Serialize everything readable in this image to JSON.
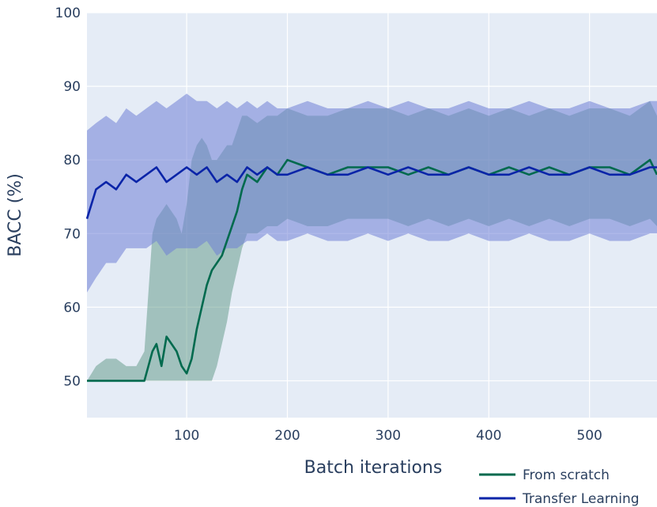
{
  "chart_data": {
    "type": "line",
    "xlabel": "Batch iterations",
    "ylabel": "BACC (%)",
    "xlim": [
      1,
      567
    ],
    "ylim": [
      45,
      100
    ],
    "xticks": [
      100,
      200,
      300,
      400,
      500
    ],
    "yticks": [
      50,
      60,
      70,
      80,
      90,
      100
    ],
    "grid": true,
    "legend_position": "bottom-right",
    "series": [
      {
        "name": "From scratch",
        "color": "#006a4e",
        "band_color": "#6a9e8e",
        "x": [
          1,
          10,
          20,
          30,
          40,
          50,
          58,
          62,
          66,
          70,
          75,
          80,
          85,
          90,
          95,
          100,
          105,
          110,
          115,
          120,
          125,
          130,
          135,
          140,
          145,
          150,
          155,
          160,
          170,
          180,
          190,
          200,
          220,
          240,
          260,
          280,
          300,
          320,
          340,
          360,
          380,
          400,
          420,
          440,
          460,
          480,
          500,
          520,
          540,
          560,
          567
        ],
        "mean": [
          50,
          50,
          50,
          50,
          50,
          50,
          50,
          52,
          54,
          55,
          52,
          56,
          55,
          54,
          52,
          51,
          53,
          57,
          60,
          63,
          65,
          66,
          67,
          69,
          71,
          73,
          76,
          78,
          77,
          79,
          78,
          80,
          79,
          78,
          79,
          79,
          79,
          78,
          79,
          78,
          79,
          78,
          79,
          78,
          79,
          78,
          79,
          79,
          78,
          80,
          78
        ],
        "upper": [
          50,
          52,
          53,
          53,
          52,
          52,
          54,
          62,
          70,
          72,
          73,
          74,
          73,
          72,
          70,
          74,
          80,
          82,
          83,
          82,
          80,
          80,
          81,
          82,
          82,
          84,
          86,
          86,
          85,
          86,
          86,
          87,
          86,
          86,
          87,
          87,
          87,
          86,
          87,
          86,
          87,
          86,
          87,
          86,
          87,
          86,
          87,
          87,
          86,
          88,
          86
        ],
        "lower": [
          50,
          50,
          50,
          50,
          50,
          50,
          50,
          50,
          50,
          50,
          50,
          50,
          50,
          50,
          50,
          50,
          50,
          50,
          50,
          50,
          50,
          52,
          55,
          58,
          62,
          65,
          68,
          70,
          70,
          71,
          71,
          72,
          71,
          71,
          72,
          72,
          72,
          71,
          72,
          71,
          72,
          71,
          72,
          71,
          72,
          71,
          72,
          72,
          71,
          72,
          71
        ]
      },
      {
        "name": "Transfer Learning",
        "color": "#0a24a8",
        "band_color": "#6f80d6",
        "x": [
          1,
          10,
          20,
          30,
          40,
          50,
          60,
          70,
          80,
          90,
          100,
          110,
          120,
          130,
          140,
          150,
          160,
          170,
          180,
          190,
          200,
          220,
          240,
          260,
          280,
          300,
          320,
          340,
          360,
          380,
          400,
          420,
          440,
          460,
          480,
          500,
          520,
          540,
          560,
          567
        ],
        "mean": [
          72,
          76,
          77,
          76,
          78,
          77,
          78,
          79,
          77,
          78,
          79,
          78,
          79,
          77,
          78,
          77,
          79,
          78,
          79,
          78,
          78,
          79,
          78,
          78,
          79,
          78,
          79,
          78,
          78,
          79,
          78,
          78,
          79,
          78,
          78,
          79,
          78,
          78,
          79,
          79
        ],
        "upper": [
          84,
          85,
          86,
          85,
          87,
          86,
          87,
          88,
          87,
          88,
          89,
          88,
          88,
          87,
          88,
          87,
          88,
          87,
          88,
          87,
          87,
          88,
          87,
          87,
          88,
          87,
          88,
          87,
          87,
          88,
          87,
          87,
          88,
          87,
          87,
          88,
          87,
          87,
          88,
          88
        ],
        "lower": [
          62,
          64,
          66,
          66,
          68,
          68,
          68,
          69,
          67,
          68,
          68,
          68,
          69,
          67,
          68,
          68,
          69,
          69,
          70,
          69,
          69,
          70,
          69,
          69,
          70,
          69,
          70,
          69,
          69,
          70,
          69,
          69,
          70,
          69,
          69,
          70,
          69,
          69,
          70,
          70
        ]
      }
    ]
  }
}
